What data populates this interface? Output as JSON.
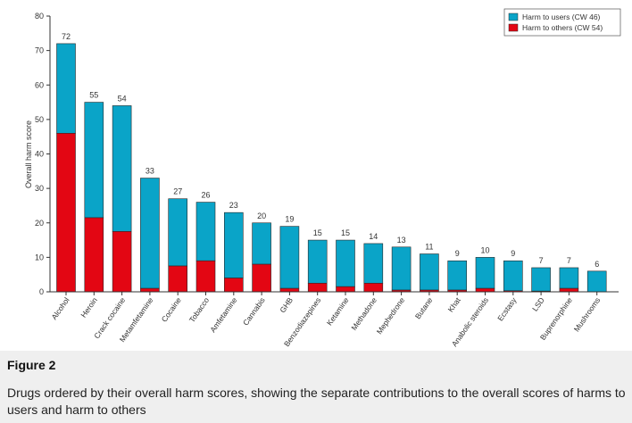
{
  "figure": {
    "label": "Figure 2",
    "caption": "Drugs ordered by their overall harm scores, showing the separate contributions to the overall scores of harms to users and harm to others"
  },
  "colors": {
    "users": "#0aa4c8",
    "others": "#e30613",
    "axis": "#333333",
    "text": "#333333"
  },
  "chart_data": {
    "type": "bar",
    "stacked": true,
    "title": "",
    "xlabel": "",
    "ylabel": "Overall harm score",
    "ylim": [
      0,
      80
    ],
    "yticks": [
      0,
      10,
      20,
      30,
      40,
      50,
      60,
      70,
      80
    ],
    "grid": false,
    "legend_position": "top-right",
    "categories": [
      "Alcohol",
      "Heroin",
      "Crack cocaine",
      "Metamfetamine",
      "Cocaine",
      "Tobacco",
      "Amfetamine",
      "Cannabis",
      "GHB",
      "Benzodiazepines",
      "Ketamine",
      "Methadone",
      "Mephedrone",
      "Butane",
      "Khat",
      "Anabolic steroids",
      "Ecstasy",
      "LSD",
      "Buprenorphine",
      "Mushrooms"
    ],
    "totals": [
      72,
      55,
      54,
      33,
      27,
      26,
      23,
      20,
      19,
      15,
      15,
      14,
      13,
      11,
      9,
      10,
      9,
      7,
      7,
      6
    ],
    "series": [
      {
        "name": "Harm to others (CW 54)",
        "values": [
          46,
          21.5,
          17.5,
          1,
          7.5,
          9,
          4,
          8,
          1,
          2.5,
          1.5,
          2.5,
          0.5,
          0.5,
          0.5,
          1,
          0.3,
          0.2,
          1,
          0
        ]
      },
      {
        "name": "Harm to users (CW 46)",
        "values": [
          26,
          33.5,
          36.5,
          32,
          19.5,
          17,
          19,
          12,
          18,
          12.5,
          13.5,
          11.5,
          12.5,
          10.5,
          8.5,
          9,
          8.7,
          6.8,
          6,
          6
        ]
      }
    ]
  }
}
